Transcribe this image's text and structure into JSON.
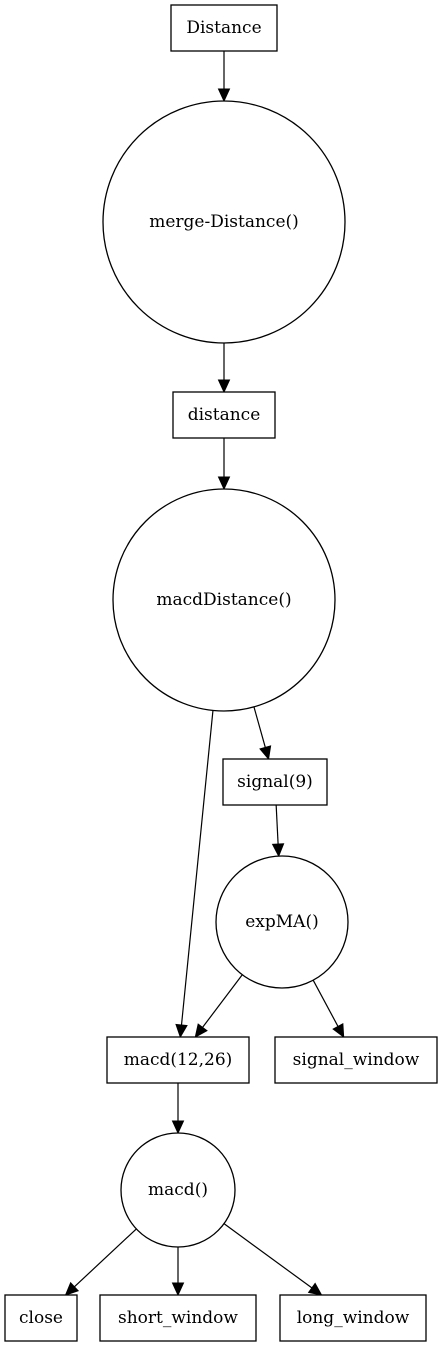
{
  "diagram": {
    "nodes": [
      {
        "id": "distance_input",
        "label": "Distance",
        "shape": "box"
      },
      {
        "id": "merge_distance",
        "label": "merge-Distance()",
        "shape": "circle"
      },
      {
        "id": "distance",
        "label": "distance",
        "shape": "box"
      },
      {
        "id": "macd_distance",
        "label": "macdDistance()",
        "shape": "circle"
      },
      {
        "id": "signal",
        "label": "signal(9)",
        "shape": "box"
      },
      {
        "id": "expma",
        "label": "expMA()",
        "shape": "circle"
      },
      {
        "id": "macd_12_26",
        "label": "macd(12,26)",
        "shape": "box"
      },
      {
        "id": "signal_window",
        "label": "signal_window",
        "shape": "box"
      },
      {
        "id": "macd_fn",
        "label": "macd()",
        "shape": "circle"
      },
      {
        "id": "close",
        "label": "close",
        "shape": "box"
      },
      {
        "id": "short_window",
        "label": "short_window",
        "shape": "box"
      },
      {
        "id": "long_window",
        "label": "long_window",
        "shape": "box"
      }
    ],
    "edges": [
      {
        "from": "distance_input",
        "to": "merge_distance"
      },
      {
        "from": "merge_distance",
        "to": "distance"
      },
      {
        "from": "distance",
        "to": "macd_distance"
      },
      {
        "from": "macd_distance",
        "to": "signal"
      },
      {
        "from": "macd_distance",
        "to": "macd_12_26"
      },
      {
        "from": "signal",
        "to": "expma"
      },
      {
        "from": "expma",
        "to": "macd_12_26"
      },
      {
        "from": "expma",
        "to": "signal_window"
      },
      {
        "from": "macd_12_26",
        "to": "macd_fn"
      },
      {
        "from": "macd_fn",
        "to": "close"
      },
      {
        "from": "macd_fn",
        "to": "short_window"
      },
      {
        "from": "macd_fn",
        "to": "long_window"
      }
    ]
  }
}
